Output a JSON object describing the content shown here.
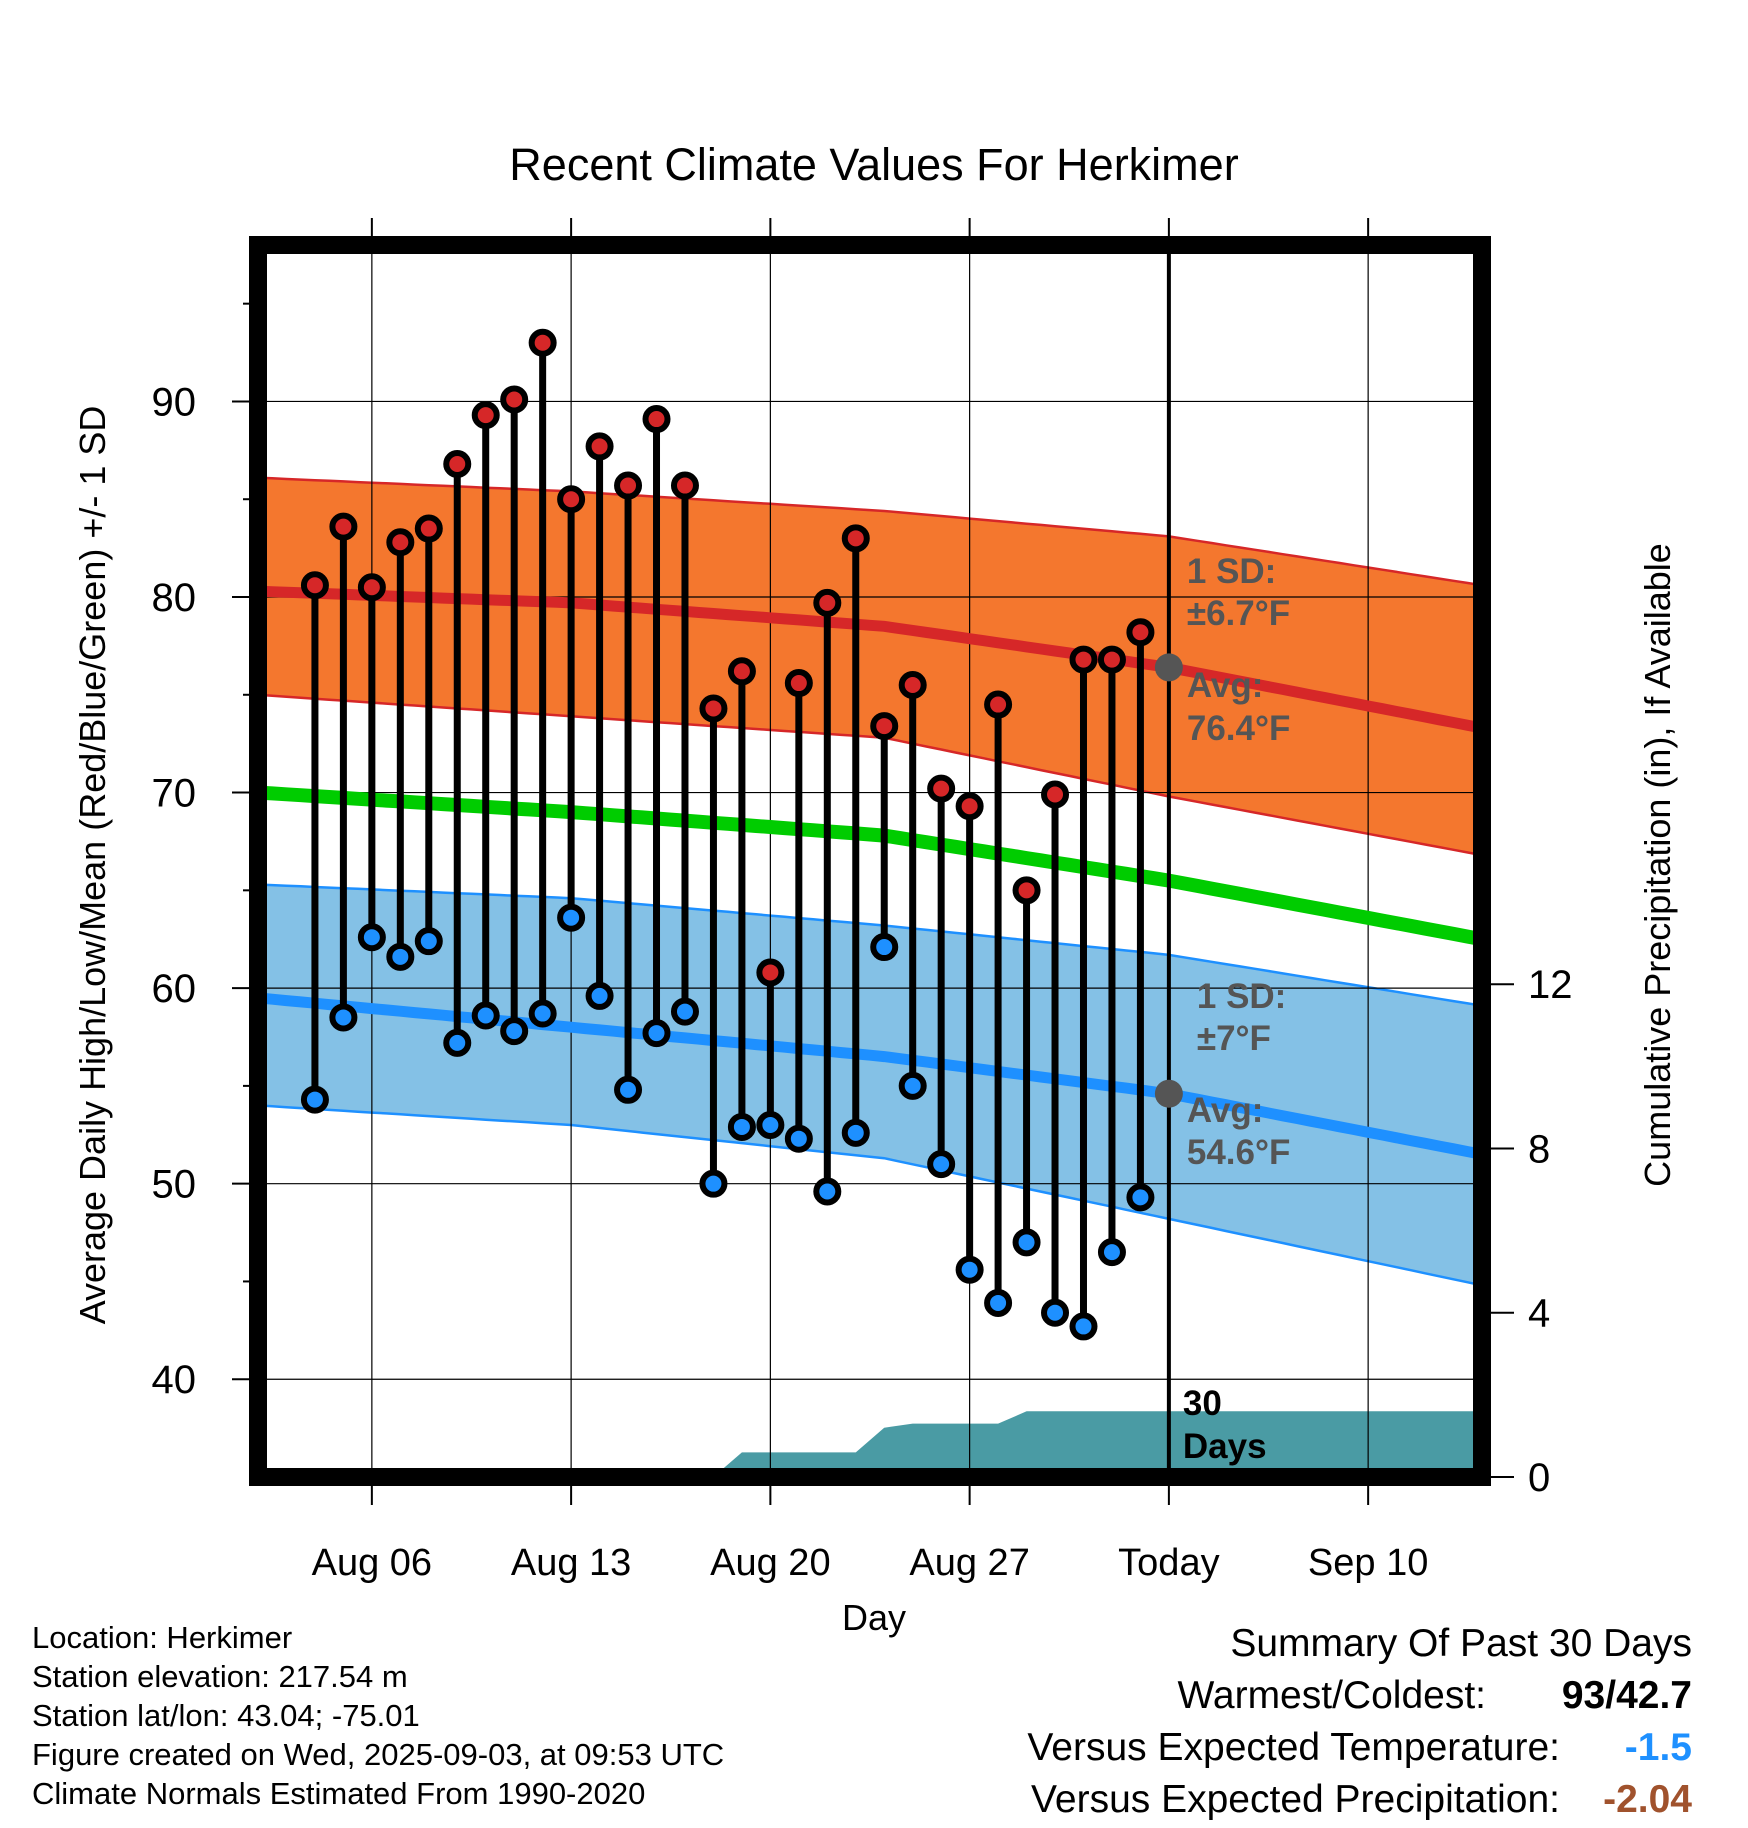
{
  "chart_data": {
    "type": "line",
    "title": "Recent Climate Values For Herkimer",
    "xlabel": "Day",
    "ylabel_left": "Average Daily High/Low/Mean (Red/Blue/Green) +/- 1 SD",
    "ylabel_right": "Cumulative Precipitation (in), If Available",
    "ylim_left": [
      35,
      98
    ],
    "ylim_right": [
      0,
      30
    ],
    "y_ticks_left": [
      40,
      50,
      60,
      70,
      80,
      90
    ],
    "y_ticks_right": [
      0,
      4,
      8,
      12
    ],
    "x_start": "2025-08-02",
    "x_end": "2025-09-14",
    "x_ticks": [
      {
        "date": "2025-08-06",
        "label": "Aug 06"
      },
      {
        "date": "2025-08-13",
        "label": "Aug 13"
      },
      {
        "date": "2025-08-20",
        "label": "Aug 20"
      },
      {
        "date": "2025-08-27",
        "label": "Aug 27"
      },
      {
        "date": "2025-09-03",
        "label": "Today"
      },
      {
        "date": "2025-09-10",
        "label": "Sep 10"
      }
    ],
    "today": "2025-09-03",
    "daily": {
      "dates": [
        "2025-08-04",
        "2025-08-05",
        "2025-08-06",
        "2025-08-07",
        "2025-08-08",
        "2025-08-09",
        "2025-08-10",
        "2025-08-11",
        "2025-08-12",
        "2025-08-13",
        "2025-08-14",
        "2025-08-15",
        "2025-08-16",
        "2025-08-17",
        "2025-08-18",
        "2025-08-19",
        "2025-08-20",
        "2025-08-21",
        "2025-08-22",
        "2025-08-23",
        "2025-08-24",
        "2025-08-25",
        "2025-08-26",
        "2025-08-27",
        "2025-08-28",
        "2025-08-29",
        "2025-08-30",
        "2025-08-31",
        "2025-09-01",
        "2025-09-02"
      ],
      "high": [
        80.6,
        83.6,
        80.5,
        82.8,
        83.5,
        86.8,
        89.3,
        90.1,
        93.0,
        85.0,
        87.7,
        85.7,
        89.1,
        85.7,
        74.3,
        76.2,
        60.8,
        75.6,
        79.7,
        83.0,
        73.4,
        75.5,
        70.2,
        69.3,
        74.5,
        65.0,
        69.9,
        76.8,
        76.8,
        78.2
      ],
      "low": [
        54.3,
        58.5,
        62.6,
        61.6,
        62.4,
        57.2,
        58.6,
        57.8,
        58.7,
        63.6,
        59.6,
        54.8,
        57.7,
        58.8,
        50.0,
        52.9,
        53.0,
        52.3,
        49.6,
        52.6,
        62.1,
        55.0,
        51.0,
        45.6,
        43.9,
        47.0,
        43.4,
        42.7,
        46.5,
        49.3
      ]
    },
    "normals": {
      "dates": [
        "2025-08-02",
        "2025-08-13",
        "2025-08-24",
        "2025-09-03",
        "2025-09-14"
      ],
      "high_avg": [
        80.3,
        79.7,
        78.5,
        76.4,
        73.3
      ],
      "high_sd_upper": [
        86.1,
        85.4,
        84.4,
        83.1,
        80.6
      ],
      "high_sd_lower": [
        75.0,
        73.9,
        72.8,
        69.8,
        66.8
      ],
      "mean_avg": [
        70.0,
        69.0,
        67.8,
        65.5,
        62.5
      ],
      "low_avg": [
        59.5,
        58.0,
        56.5,
        54.6,
        51.5
      ],
      "low_sd_upper": [
        65.3,
        64.6,
        63.2,
        61.7,
        59.1
      ],
      "low_sd_lower": [
        54.0,
        53.0,
        51.3,
        48.2,
        44.8
      ]
    },
    "precip_cumulative": {
      "dates": [
        "2025-08-02",
        "2025-08-18",
        "2025-08-19",
        "2025-08-20",
        "2025-08-23",
        "2025-08-24",
        "2025-08-25",
        "2025-08-27",
        "2025-08-28",
        "2025-08-29",
        "2025-09-14"
      ],
      "values": [
        0,
        0,
        0.6,
        0.6,
        0.6,
        1.2,
        1.3,
        1.3,
        1.3,
        1.6,
        1.6
      ]
    },
    "colors": {
      "high": "#d62728",
      "high_band": "#f4772e",
      "mean": "#00cc00",
      "low": "#1e90ff",
      "low_band": "#84c1e6",
      "precip": "#4a9ba4"
    },
    "annotations": {
      "high_sd": [
        "1 SD:",
        "±6.7°F"
      ],
      "high_avg": [
        "Avg:",
        "76.4°F"
      ],
      "low_sd": [
        "1 SD:",
        "±7°F"
      ],
      "low_avg": [
        "Avg:",
        "54.6°F"
      ],
      "precip_period": [
        "30",
        "Days"
      ]
    }
  },
  "station_info": [
    "Location: Herkimer",
    "Station elevation: 217.54 m",
    "Station lat/lon: 43.04; -75.01",
    "Figure created on Wed, 2025-09-03, at 09:53 UTC",
    "Climate Normals Estimated From 1990-2020"
  ],
  "summary": {
    "title": "Summary Of Past 30 Days",
    "warmest_coldest_label": "Warmest/Coldest:",
    "warmest": "93",
    "sep": "/",
    "coldest": "42.7",
    "temp_label": "Versus Expected Temperature:",
    "temp_value": "-1.5",
    "precip_label": "Versus Expected Precipitation:",
    "precip_value": "-2.04"
  }
}
